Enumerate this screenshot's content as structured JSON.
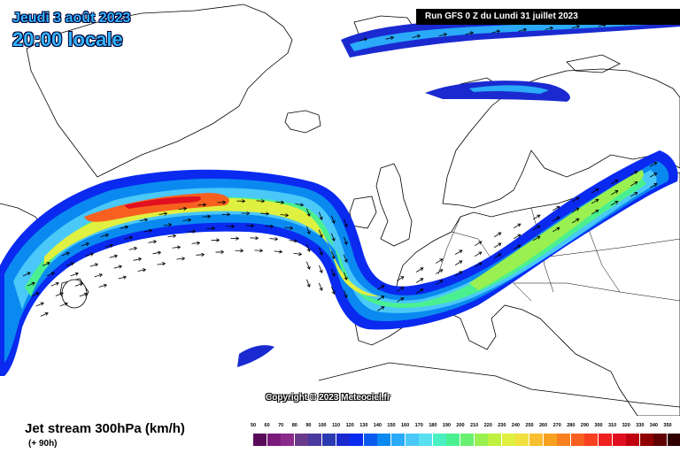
{
  "header": {
    "date": "Jeudi 3 août 2023",
    "time": "20:00 locale",
    "run": "Run GFS 0 Z du Lundi 31 juillet 2023"
  },
  "map": {
    "copyright": "Copyright © 2023 Meteociel.fr",
    "land_color": "#ffffff",
    "border_color": "#000000"
  },
  "legend": {
    "title": "Jet stream 300hPa (km/h)",
    "subtitle": "(+ 90h)",
    "values": [
      "50",
      "60",
      "70",
      "80",
      "90",
      "100",
      "110",
      "120",
      "130",
      "140",
      "150",
      "160",
      "170",
      "180",
      "190",
      "200",
      "210",
      "220",
      "230",
      "240",
      "250",
      "260",
      "270",
      "280",
      "290",
      "300",
      "310",
      "320",
      "330",
      "340",
      "350"
    ],
    "colors": [
      "#5a0a5a",
      "#7a1a7a",
      "#8a2a8a",
      "#6a3a8a",
      "#4a3aa0",
      "#2a3ab0",
      "#1a2ad0",
      "#0a2af0",
      "#0a5af0",
      "#0a8af0",
      "#2aaaf8",
      "#4ac8f8",
      "#5ae0f0",
      "#4af0c0",
      "#4af090",
      "#6af070",
      "#9af050",
      "#c0f040",
      "#e0f040",
      "#f0e040",
      "#f8c030",
      "#f8a020",
      "#f88020",
      "#f86020",
      "#f84020",
      "#f02020",
      "#e01020",
      "#c00010",
      "#900000",
      "#600000",
      "#300000"
    ]
  }
}
